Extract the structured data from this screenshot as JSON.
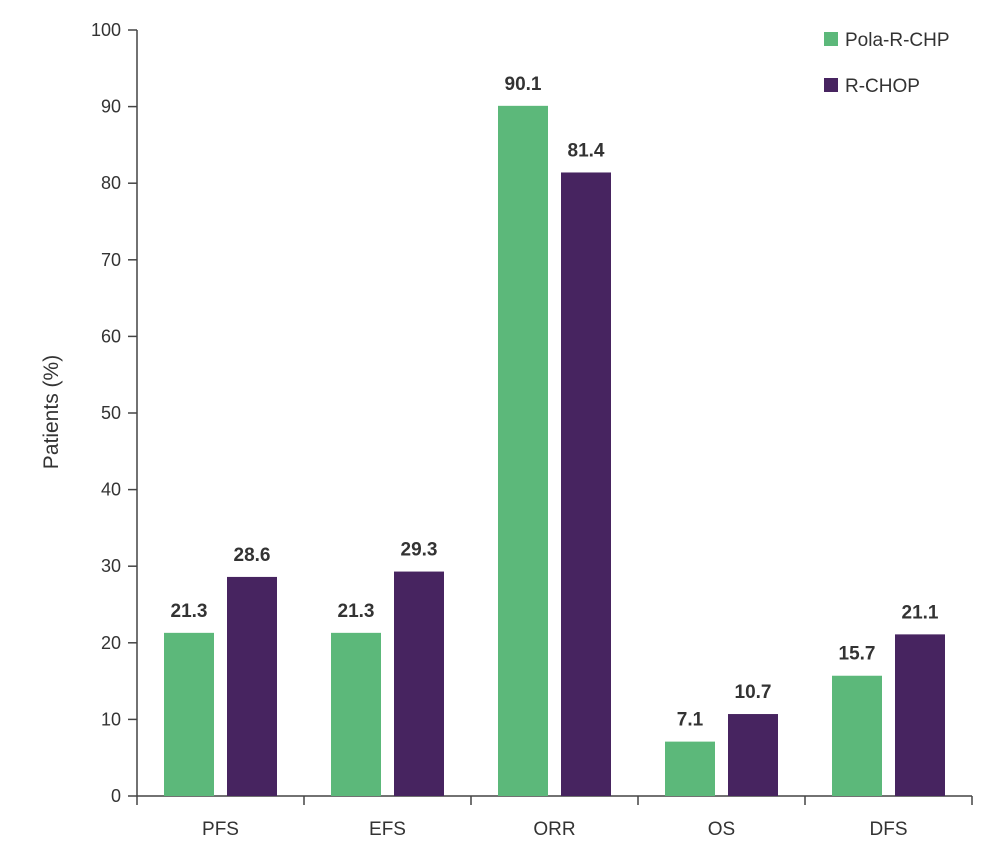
{
  "chart_data": {
    "type": "bar",
    "title": "",
    "xlabel": "",
    "ylabel": "Patients (%)",
    "ylim": [
      0,
      100
    ],
    "yticks": [
      "0",
      "10",
      "20",
      "30",
      "40",
      "50",
      "60",
      "70",
      "80",
      "90",
      "100"
    ],
    "categories": [
      "PFS",
      "EFS",
      "ORR",
      "OS",
      "DFS"
    ],
    "series": [
      {
        "name": "Pola-R-CHP",
        "color": "#5cb87a",
        "values": [
          21.3,
          21.3,
          90.1,
          7.1,
          15.7
        ],
        "labels": [
          "21.3",
          "21.3",
          "90.1",
          "7.1",
          "15.7"
        ]
      },
      {
        "name": "R-CHOP",
        "color": "#472460",
        "values": [
          28.6,
          29.3,
          81.4,
          10.7,
          21.1
        ],
        "labels": [
          "28.6",
          "29.3",
          "81.4",
          "10.7",
          "21.1"
        ]
      }
    ],
    "legend_position": "top-right",
    "grid": false
  }
}
